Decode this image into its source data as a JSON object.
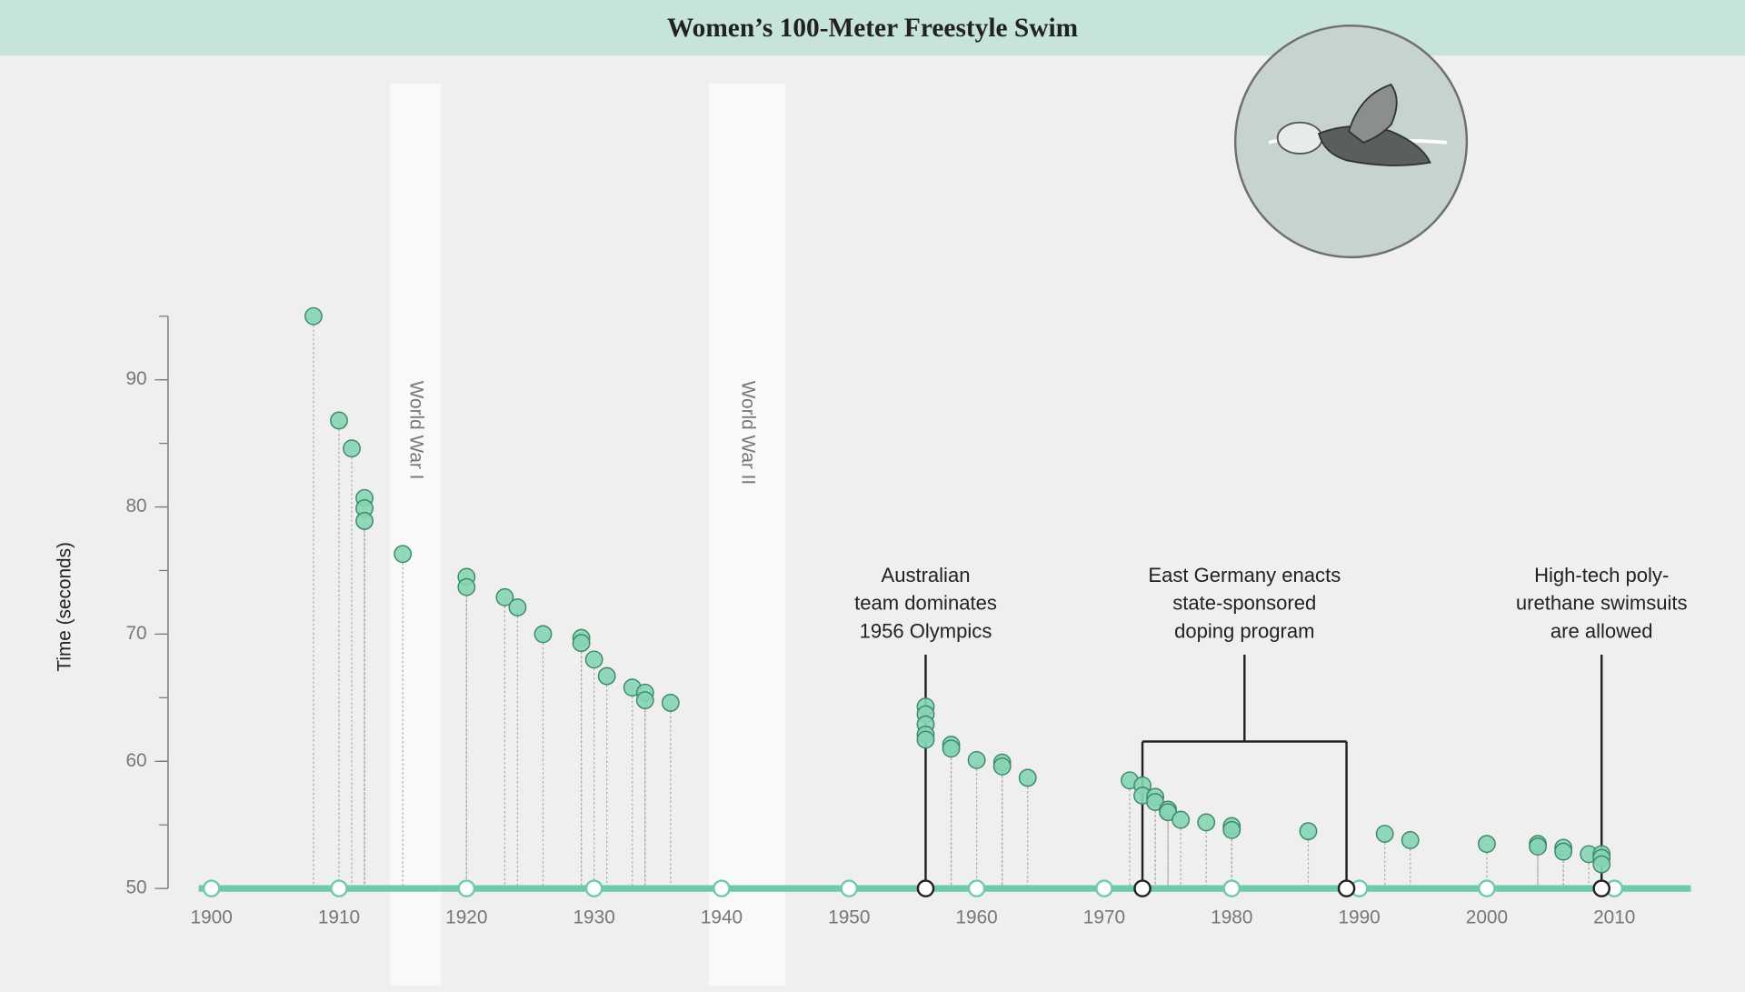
{
  "chart_data": {
    "type": "lollipop",
    "title": "Women’s 100-Meter Freestyle Swim",
    "ylabel": "Time (seconds)",
    "x": [
      1908,
      1910,
      1911,
      1912,
      1912,
      1912,
      1915,
      1920,
      1920,
      1923,
      1924,
      1926,
      1929,
      1929,
      1930,
      1931,
      1933,
      1934,
      1934,
      1936,
      1956,
      1956,
      1956,
      1956,
      1956,
      1958,
      1958,
      1960,
      1962,
      1962,
      1964,
      1972,
      1973,
      1973,
      1974,
      1974,
      1975,
      1975,
      1976,
      1978,
      1980,
      1980,
      1986,
      1992,
      1994,
      2000,
      2004,
      2004,
      2006,
      2006,
      2008,
      2009,
      2009,
      2009
    ],
    "values": [
      95.0,
      86.8,
      84.6,
      80.7,
      79.9,
      78.9,
      76.3,
      74.5,
      73.7,
      72.9,
      72.1,
      70.0,
      69.7,
      69.3,
      68.0,
      66.7,
      65.8,
      65.4,
      64.8,
      64.6,
      64.3,
      63.7,
      62.9,
      62.1,
      61.7,
      61.3,
      61.0,
      60.1,
      59.9,
      59.6,
      58.7,
      58.5,
      58.1,
      57.3,
      57.2,
      56.8,
      56.2,
      56.0,
      55.4,
      55.2,
      54.9,
      54.6,
      54.5,
      54.3,
      53.8,
      53.5,
      53.5,
      53.3,
      53.2,
      52.9,
      52.7,
      52.7,
      52.4,
      51.9
    ],
    "color": "#86d4b4",
    "xlim": [
      1899,
      2016
    ],
    "ylim": [
      50,
      95
    ],
    "xticks": [
      1900,
      1910,
      1920,
      1930,
      1940,
      1950,
      1960,
      1970,
      1980,
      1990,
      2000,
      2010
    ],
    "yticks": [
      50,
      60,
      70,
      80,
      90
    ],
    "bands": [
      {
        "label": "World War I",
        "start": 1914,
        "end": 1918
      },
      {
        "label": "World War II",
        "start": 1939,
        "end": 1945
      }
    ],
    "annotations": [
      {
        "lines": [
          "Australian",
          "team dominates",
          "1956 Olympics"
        ],
        "x": [
          1956
        ]
      },
      {
        "lines": [
          "East Germany enacts",
          "state-sponsored",
          "doping program"
        ],
        "x": [
          1973,
          1989
        ]
      },
      {
        "lines": [
          "High-tech poly-",
          "urethane swimsuits",
          "are allowed"
        ],
        "x": [
          2009
        ]
      }
    ]
  }
}
